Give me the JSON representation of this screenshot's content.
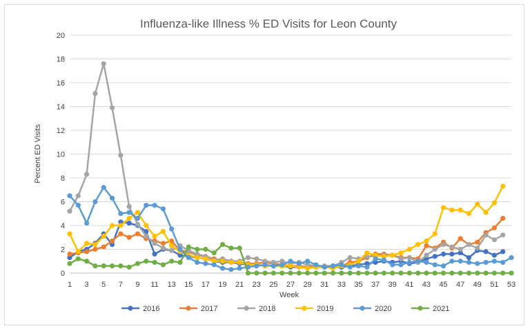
{
  "chart_data": {
    "type": "line",
    "title": "Influenza-like Illness % ED Visits for Leon County",
    "xlabel": "Week",
    "ylabel": "Percent ED Visits",
    "xlim": [
      1,
      53
    ],
    "ylim": [
      0,
      20
    ],
    "x_ticks": [
      1,
      3,
      5,
      7,
      9,
      11,
      13,
      15,
      17,
      19,
      21,
      23,
      25,
      27,
      29,
      31,
      33,
      35,
      37,
      39,
      41,
      43,
      45,
      47,
      49,
      51,
      53
    ],
    "y_ticks": [
      0,
      2,
      4,
      6,
      8,
      10,
      12,
      14,
      16,
      18,
      20
    ],
    "grid": "horizontal",
    "legend_position": "bottom",
    "series": [
      {
        "name": "2016",
        "color": "#4472c4",
        "start": 1,
        "values": [
          1.3,
          1.8,
          2.0,
          2.5,
          3.3,
          2.4,
          4.3,
          4.2,
          4.0,
          3.5,
          1.6,
          2.0,
          1.9,
          1.5,
          1.4,
          1.3,
          1.2,
          1.0,
          0.9,
          0.9,
          0.8,
          0.7,
          0.7,
          0.6,
          0.6,
          0.6,
          0.5,
          0.5,
          0.5,
          0.5,
          0.5,
          0.5,
          0.5,
          0.6,
          0.7,
          0.8,
          0.9,
          1.0,
          0.9,
          1.0,
          0.8,
          0.9,
          1.2,
          1.4,
          1.6,
          1.6,
          1.7,
          1.3,
          1.9,
          1.8,
          1.5,
          1.8
        ]
      },
      {
        "name": "2017",
        "color": "#ed7d31",
        "start": 1,
        "values": [
          1.6,
          1.7,
          1.8,
          2.0,
          2.2,
          2.7,
          3.3,
          3.0,
          3.3,
          2.9,
          2.7,
          2.5,
          2.7,
          1.9,
          1.8,
          1.5,
          1.4,
          1.2,
          1.0,
          1.0,
          0.9,
          0.8,
          0.8,
          0.9,
          0.8,
          0.7,
          0.6,
          0.6,
          0.5,
          0.6,
          0.5,
          0.6,
          0.6,
          0.9,
          1.0,
          1.3,
          1.6,
          1.6,
          1.5,
          1.3,
          1.3,
          1.2,
          2.3,
          2.1,
          2.6,
          2.1,
          2.9,
          2.4,
          2.6,
          3.4,
          3.8,
          4.6
        ]
      },
      {
        "name": "2018",
        "color": "#a5a5a5",
        "start": 1,
        "values": [
          5.2,
          6.5,
          8.3,
          15.1,
          17.6,
          13.9,
          9.9,
          5.6,
          4.1,
          3.1,
          2.5,
          2.1,
          1.9,
          2.3,
          1.9,
          1.6,
          1.4,
          1.1,
          1.2,
          1.0,
          1.0,
          1.3,
          1.2,
          1.0,
          0.9,
          1.0,
          0.8,
          0.9,
          0.7,
          0.6,
          0.6,
          0.6,
          0.9,
          1.3,
          1.2,
          1.4,
          1.4,
          1.5,
          1.5,
          1.2,
          1.3,
          0.9,
          1.5,
          2.0,
          2.4,
          2.2,
          2.0,
          2.4,
          2.1,
          3.2,
          2.8,
          3.2
        ]
      },
      {
        "name": "2019",
        "color": "#ffc000",
        "start": 1,
        "values": [
          3.3,
          1.8,
          2.5,
          2.4,
          3.1,
          4.0,
          4.0,
          4.6,
          5.1,
          4.0,
          3.1,
          3.5,
          2.3,
          1.8,
          1.5,
          1.3,
          1.2,
          1.0,
          1.0,
          0.9,
          0.9,
          0.7,
          0.7,
          0.6,
          0.6,
          0.6,
          0.6,
          0.5,
          0.4,
          0.5,
          0.5,
          0.4,
          0.6,
          0.7,
          1.0,
          1.7,
          1.5,
          1.4,
          1.5,
          1.7,
          2.0,
          2.4,
          2.7,
          3.3,
          5.5,
          5.3,
          5.3,
          5.0,
          5.8,
          5.1,
          5.9,
          7.3
        ]
      },
      {
        "name": "2020",
        "color": "#5b9bd5",
        "start": 1,
        "values": [
          6.5,
          5.7,
          4.2,
          6.0,
          7.2,
          6.3,
          5.0,
          5.1,
          4.6,
          5.7,
          5.7,
          5.4,
          3.7,
          2.0,
          1.3,
          0.9,
          0.8,
          0.7,
          0.4,
          0.3,
          0.4,
          0.5,
          0.6,
          0.7,
          0.6,
          0.7,
          1.0,
          0.8,
          1.0,
          0.7,
          0.5,
          0.6,
          0.7,
          0.5,
          0.6,
          0.5,
          1.2,
          1.1,
          0.7,
          0.7,
          0.9,
          1.0,
          0.9,
          0.7,
          0.6,
          1.0,
          1.0,
          0.9,
          0.8,
          0.9,
          1.0,
          0.9,
          1.3
        ]
      },
      {
        "name": "2021",
        "color": "#70ad47",
        "start": 1,
        "values": [
          0.8,
          1.2,
          1.0,
          0.6,
          0.6,
          0.6,
          0.6,
          0.5,
          0.8,
          1.0,
          0.9,
          0.7,
          1.0,
          0.9,
          2.2,
          2.0,
          2.0,
          1.7,
          2.4,
          2.1,
          2.1,
          0.0,
          0.0,
          0.0,
          0.0,
          0.0,
          0.0,
          0.0,
          0.0,
          0.0,
          0.0,
          0.0,
          0.0,
          0.0,
          0.0,
          0.0,
          0.0,
          0.0,
          0.0,
          0.0,
          0.0,
          0.0,
          0.0,
          0.0,
          0.0,
          0.0,
          0.0,
          0.0,
          0.0,
          0.0,
          0.0,
          0.0,
          0.0
        ]
      }
    ]
  }
}
